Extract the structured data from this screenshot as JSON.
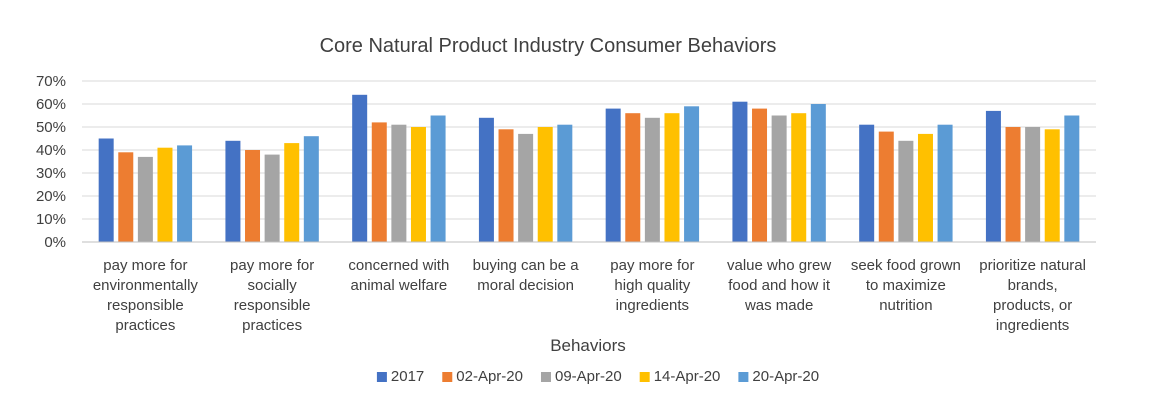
{
  "chart_data": {
    "type": "bar",
    "title": "Core Natural Product Industry Consumer Behaviors",
    "xlabel": "Behaviors",
    "ylabel": "",
    "ylim": [
      0,
      0.7
    ],
    "yticks": [
      "0%",
      "10%",
      "20%",
      "30%",
      "40%",
      "50%",
      "60%",
      "70%"
    ],
    "grid": true,
    "legend_position": "bottom",
    "categories": [
      [
        "pay more for",
        "environmentally",
        "responsible",
        "practices"
      ],
      [
        "pay more for",
        "socially",
        "responsible",
        "practices"
      ],
      [
        "concerned with",
        "animal welfare"
      ],
      [
        "buying can be a",
        "moral decision"
      ],
      [
        "pay more for",
        "high quality",
        "ingredients"
      ],
      [
        "value who grew",
        "food and how it",
        "was made"
      ],
      [
        "seek food grown",
        "to maximize",
        "nutrition"
      ],
      [
        "prioritize natural",
        "brands,",
        "products, or",
        "ingredients"
      ]
    ],
    "series": [
      {
        "name": "2017",
        "color": "#4472C4",
        "values": [
          0.45,
          0.44,
          0.64,
          0.54,
          0.58,
          0.61,
          0.51,
          0.57
        ]
      },
      {
        "name": "02-Apr-20",
        "color": "#ED7D31",
        "values": [
          0.39,
          0.4,
          0.52,
          0.49,
          0.56,
          0.58,
          0.48,
          0.5
        ]
      },
      {
        "name": "09-Apr-20",
        "color": "#A5A5A5",
        "values": [
          0.37,
          0.38,
          0.51,
          0.47,
          0.54,
          0.55,
          0.44,
          0.5
        ]
      },
      {
        "name": "14-Apr-20",
        "color": "#FFC000",
        "values": [
          0.41,
          0.43,
          0.5,
          0.5,
          0.56,
          0.56,
          0.47,
          0.49
        ]
      },
      {
        "name": "20-Apr-20",
        "color": "#5B9BD5",
        "values": [
          0.42,
          0.46,
          0.55,
          0.51,
          0.59,
          0.6,
          0.51,
          0.55
        ]
      }
    ]
  }
}
